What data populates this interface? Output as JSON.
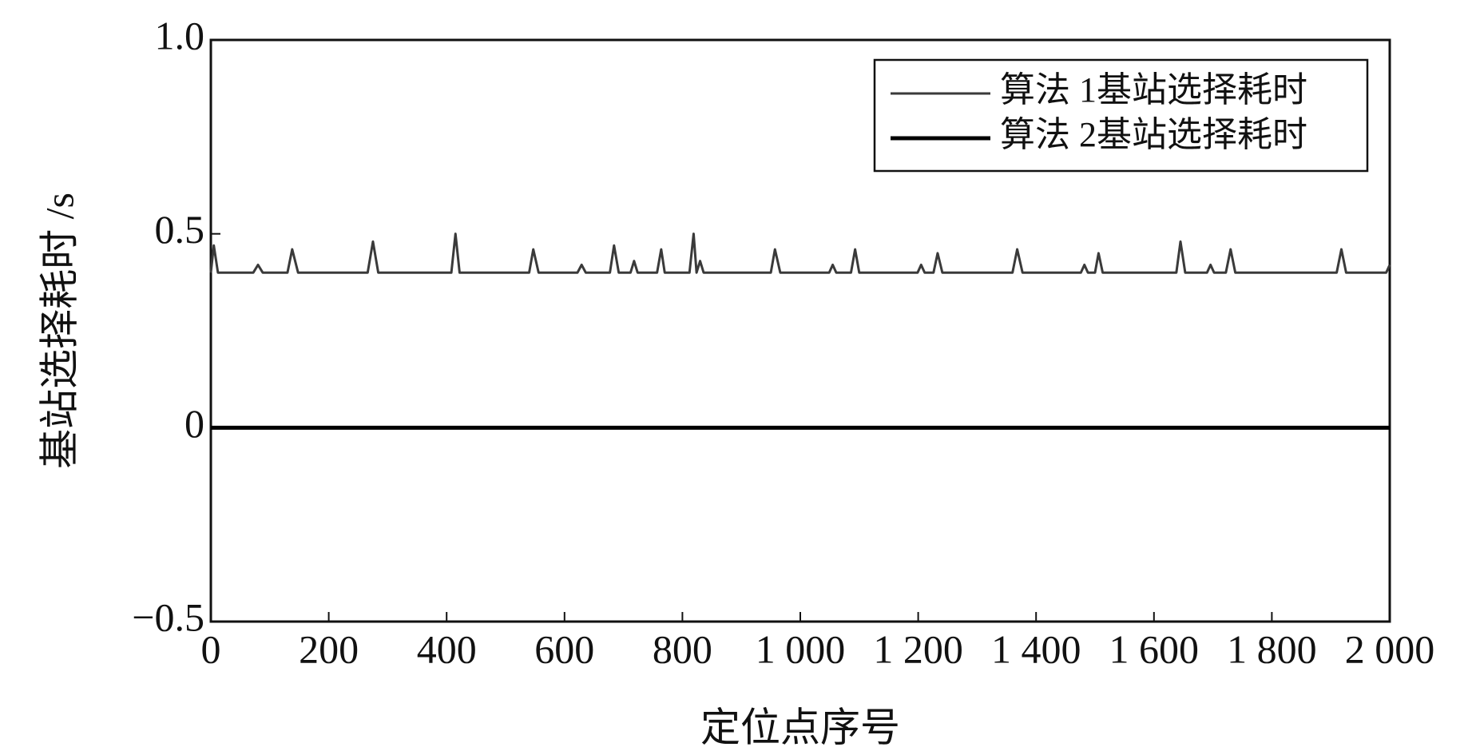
{
  "chart_data": {
    "type": "line",
    "x_label": "定位点序号",
    "y_label": "基站选择耗时 /s",
    "x": [
      0,
      5,
      12,
      72,
      80,
      88,
      130,
      138,
      148,
      266,
      275,
      284,
      408,
      415,
      422,
      540,
      547,
      556,
      622,
      629,
      636,
      677,
      684,
      692,
      712,
      718,
      724,
      757,
      764,
      770,
      812,
      819,
      824,
      830,
      836,
      950,
      957,
      966,
      1049,
      1055,
      1061,
      1086,
      1093,
      1100,
      1199,
      1205,
      1211,
      1226,
      1233,
      1241,
      1360,
      1368,
      1377,
      1476,
      1482,
      1488,
      1500,
      1506,
      1513,
      1638,
      1645,
      1653,
      1690,
      1696,
      1702,
      1722,
      1730,
      1738,
      1910,
      1918,
      1926,
      1994,
      2000
    ],
    "series": [
      {
        "name": "算法 1基站选择耗时",
        "color": "#3a3a3a",
        "width": 3,
        "values": [
          0.4,
          0.47,
          0.4,
          0.4,
          0.42,
          0.4,
          0.4,
          0.46,
          0.4,
          0.4,
          0.48,
          0.4,
          0.4,
          0.5,
          0.4,
          0.4,
          0.46,
          0.4,
          0.4,
          0.42,
          0.4,
          0.4,
          0.47,
          0.4,
          0.4,
          0.43,
          0.4,
          0.4,
          0.46,
          0.4,
          0.4,
          0.5,
          0.4,
          0.43,
          0.4,
          0.4,
          0.46,
          0.4,
          0.4,
          0.42,
          0.4,
          0.4,
          0.46,
          0.4,
          0.4,
          0.42,
          0.4,
          0.4,
          0.45,
          0.4,
          0.4,
          0.46,
          0.4,
          0.4,
          0.42,
          0.4,
          0.4,
          0.45,
          0.4,
          0.4,
          0.48,
          0.4,
          0.4,
          0.42,
          0.4,
          0.4,
          0.46,
          0.4,
          0.4,
          0.46,
          0.4,
          0.4,
          0.42
        ]
      },
      {
        "name": "算法 2基站选择耗时",
        "color": "#000000",
        "width": 5,
        "values": [
          0,
          0,
          0,
          0,
          0,
          0,
          0,
          0,
          0,
          0,
          0,
          0,
          0,
          0,
          0,
          0,
          0,
          0,
          0,
          0,
          0,
          0,
          0,
          0,
          0,
          0,
          0,
          0,
          0,
          0,
          0,
          0,
          0,
          0,
          0,
          0,
          0,
          0,
          0,
          0,
          0,
          0,
          0,
          0,
          0,
          0,
          0,
          0,
          0,
          0,
          0,
          0,
          0,
          0,
          0,
          0,
          0,
          0,
          0,
          0,
          0,
          0,
          0,
          0,
          0,
          0,
          0,
          0,
          0,
          0,
          0,
          0,
          0
        ]
      }
    ],
    "xlim": [
      0,
      2000
    ],
    "xticks": [
      0,
      200,
      400,
      600,
      800,
      {
        "value": 1000,
        "label": "1 000"
      },
      {
        "value": 1200,
        "label": "1 200"
      },
      {
        "value": 1400,
        "label": "1 400"
      },
      {
        "value": 1600,
        "label": "1 600"
      },
      {
        "value": 1800,
        "label": "1 800"
      },
      {
        "value": 2000,
        "label": "2 000"
      }
    ],
    "ylim": [
      -0.5,
      1.0
    ],
    "yticks": [
      {
        "value": -0.5,
        "label": "−0.5"
      },
      0,
      0.5,
      {
        "value": 1.0,
        "label": "1.0"
      }
    ],
    "grid": false,
    "legend": "upper right"
  }
}
